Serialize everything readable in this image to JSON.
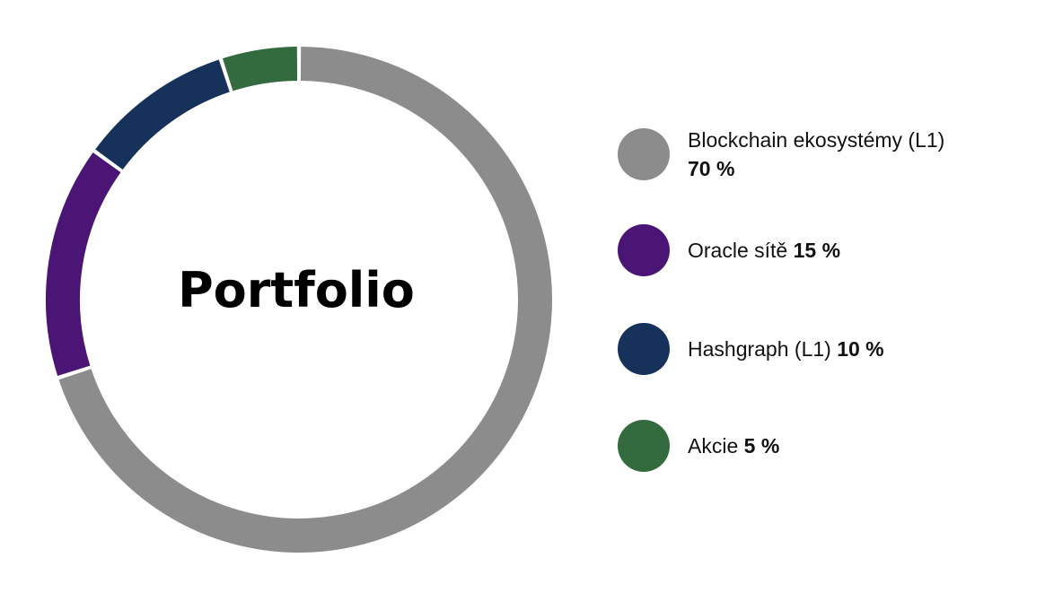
{
  "chart_data": {
    "type": "pie",
    "variant": "donut",
    "center_label": "Portfolio",
    "series": [
      {
        "name": "Blockchain ekosystémy (L1)",
        "value": 70,
        "value_label": "70 %",
        "color": "#8c8c8c"
      },
      {
        "name": "Oracle sítě",
        "value": 15,
        "value_label": "15 %",
        "color": "#4a1575"
      },
      {
        "name": "Hashgraph (L1)",
        "value": 10,
        "value_label": "10 %",
        "color": "#17325a"
      },
      {
        "name": "Akcie",
        "value": 5,
        "value_label": "5 %",
        "color": "#336a3e"
      }
    ],
    "legend_position": "right"
  }
}
